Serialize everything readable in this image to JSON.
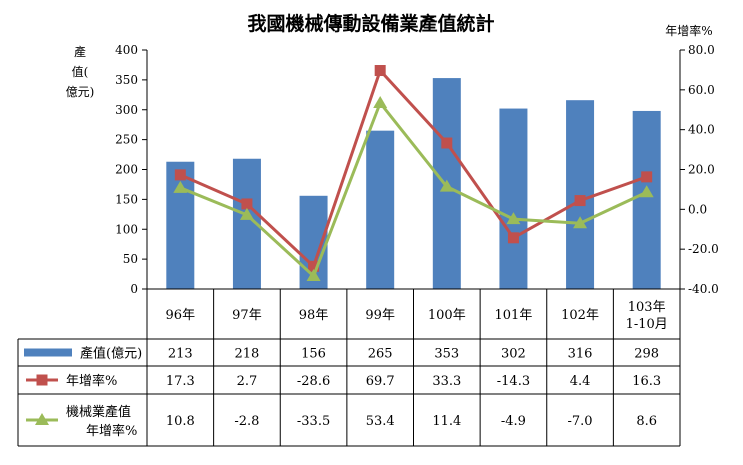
{
  "chart_data": {
    "type": "bar",
    "title": "我國機械傳動設備業產值統計",
    "ylabel_left": "產值(億元)",
    "ylabel_right": "年增率%",
    "ylim_left": [
      0,
      400
    ],
    "ylim_right": [
      -40,
      80
    ],
    "yticks_left": [
      "0",
      "50",
      "100",
      "150",
      "200",
      "250",
      "300",
      "350",
      "400"
    ],
    "yticks_right": [
      "-40.0",
      "-20.0",
      "0.0",
      "20.0",
      "40.0",
      "60.0",
      "80.0"
    ],
    "categories": [
      "96年",
      "97年",
      "98年",
      "99年",
      "100年",
      "101年",
      "102年",
      "103年\n1-10月"
    ],
    "series": [
      {
        "name": "產值(億元)",
        "kind": "bar",
        "axis": "left",
        "color": "#4f81bd",
        "values": [
          213,
          218,
          156,
          265,
          353,
          302,
          316,
          298
        ],
        "table_values": [
          "213",
          "218",
          "156",
          "265",
          "353",
          "302",
          "316",
          "298"
        ]
      },
      {
        "name": "年增率%",
        "kind": "line",
        "marker": "square",
        "axis": "right",
        "color": "#c0504d",
        "values": [
          17.3,
          2.7,
          -28.6,
          69.7,
          33.3,
          -14.3,
          4.4,
          16.3
        ],
        "table_values": [
          "17.3",
          "2.7",
          "-28.6",
          "69.7",
          "33.3",
          "-14.3",
          "4.4",
          "16.3"
        ]
      },
      {
        "name": "機械業產值\n年增率%",
        "kind": "line",
        "marker": "triangle",
        "axis": "right",
        "color": "#9bbb59",
        "values": [
          10.8,
          -2.8,
          -33.5,
          53.4,
          11.4,
          -4.9,
          -7.0,
          8.6
        ],
        "table_values": [
          "10.8",
          "-2.8",
          "-33.5",
          "53.4",
          "11.4",
          "-4.9",
          "-7.0",
          "8.6"
        ]
      }
    ],
    "grid": false,
    "legend": "data-table"
  }
}
